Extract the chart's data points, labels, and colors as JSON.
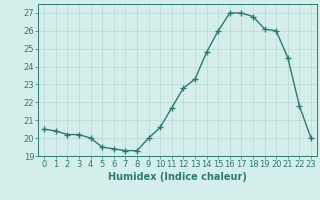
{
  "x": [
    0,
    1,
    2,
    3,
    4,
    5,
    6,
    7,
    8,
    9,
    10,
    11,
    12,
    13,
    14,
    15,
    16,
    17,
    18,
    19,
    20,
    21,
    22,
    23
  ],
  "y": [
    20.5,
    20.4,
    20.2,
    20.2,
    20.0,
    19.5,
    19.4,
    19.3,
    19.3,
    20.0,
    20.6,
    21.7,
    22.8,
    23.3,
    24.8,
    26.0,
    27.0,
    27.0,
    26.8,
    26.1,
    26.0,
    24.5,
    21.8,
    20.0
  ],
  "line_color": "#2e7b6e",
  "marker": "+",
  "marker_size": 5,
  "bg_color": "#d4eeeb",
  "grid_color": "#b8d8d4",
  "xlabel": "Humidex (Indice chaleur)",
  "ylim": [
    19,
    27.5
  ],
  "xlim": [
    -0.5,
    23.5
  ],
  "yticks": [
    19,
    20,
    21,
    22,
    23,
    24,
    25,
    26,
    27
  ],
  "xticks": [
    0,
    1,
    2,
    3,
    4,
    5,
    6,
    7,
    8,
    9,
    10,
    11,
    12,
    13,
    14,
    15,
    16,
    17,
    18,
    19,
    20,
    21,
    22,
    23
  ],
  "tick_color": "#2e7b6e",
  "label_color": "#2e7b6e",
  "font_size": 6,
  "xlabel_fontsize": 7,
  "linewidth": 1.0,
  "marker_linewidth": 1.0
}
